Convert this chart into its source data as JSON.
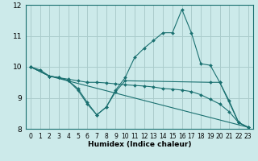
{
  "xlabel": "Humidex (Indice chaleur)",
  "bg_color": "#cceaea",
  "grid_color": "#aacccc",
  "line_color": "#1a7070",
  "spine_color": "#1a7070",
  "xlim": [
    -0.5,
    23.5
  ],
  "ylim": [
    8,
    12
  ],
  "yticks": [
    8,
    9,
    10,
    11,
    12
  ],
  "xticks": [
    0,
    1,
    2,
    3,
    4,
    5,
    6,
    7,
    8,
    9,
    10,
    11,
    12,
    13,
    14,
    15,
    16,
    17,
    18,
    19,
    20,
    21,
    22,
    23
  ],
  "series": [
    {
      "x": [
        0,
        1,
        2,
        3,
        4,
        5,
        6,
        7,
        8,
        9,
        10,
        11,
        12,
        13,
        14,
        15,
        16,
        17,
        18,
        19,
        20,
        21,
        22,
        23
      ],
      "y": [
        10.0,
        9.9,
        9.7,
        9.65,
        9.55,
        9.25,
        8.8,
        8.45,
        8.7,
        9.25,
        9.65,
        10.3,
        10.6,
        10.85,
        11.1,
        11.1,
        11.85,
        11.1,
        10.1,
        10.05,
        9.5,
        8.9,
        8.2,
        8.05
      ]
    },
    {
      "x": [
        0,
        2,
        3,
        4,
        5,
        6,
        7,
        8,
        9,
        10,
        11,
        12,
        13,
        14,
        15,
        16,
        17,
        18,
        19,
        20,
        21,
        22,
        23
      ],
      "y": [
        10.0,
        9.7,
        9.65,
        9.6,
        9.55,
        9.5,
        9.5,
        9.48,
        9.45,
        9.42,
        9.4,
        9.38,
        9.35,
        9.3,
        9.28,
        9.25,
        9.2,
        9.1,
        8.95,
        8.8,
        8.55,
        8.2,
        8.05
      ]
    },
    {
      "x": [
        0,
        2,
        23
      ],
      "y": [
        10.0,
        9.7,
        8.05
      ]
    },
    {
      "x": [
        0,
        2,
        3,
        4,
        5,
        6,
        7,
        8,
        9,
        10,
        19,
        20,
        22,
        23
      ],
      "y": [
        10.0,
        9.7,
        9.65,
        9.55,
        9.3,
        8.85,
        8.45,
        8.7,
        9.2,
        9.55,
        9.5,
        9.5,
        8.2,
        8.05
      ]
    }
  ],
  "xlabel_fontsize": 6.5,
  "xlabel_fontweight": "bold",
  "tick_fontsize": 5.5,
  "ytick_fontsize": 6.5
}
